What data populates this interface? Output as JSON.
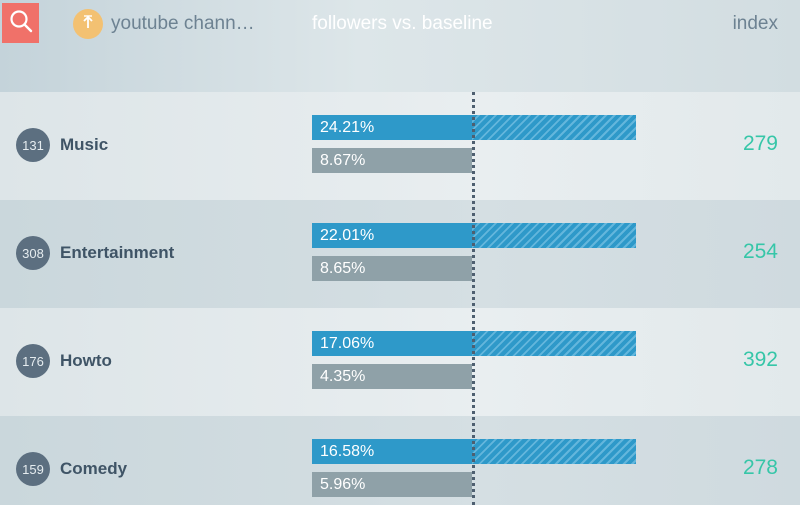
{
  "header": {
    "search_icon": "search-icon",
    "sort_icon": "sort-up-icon",
    "column_channel": "youtube chann…",
    "column_metric": "followers vs. baseline",
    "column_index": "index"
  },
  "colors": {
    "search_button": "#f07169",
    "sort_button": "#f3c172",
    "followers_bar": "#2e99c9",
    "baseline_bar": "#8fa1a8",
    "index_text": "#36c6a8",
    "rank_circle": "#5c6f80"
  },
  "rows": [
    {
      "rank": "131",
      "name": "Music",
      "followers": "24.21%",
      "baseline": "8.67%",
      "index": "279",
      "followers_value": 24.21,
      "baseline_value": 8.67
    },
    {
      "rank": "308",
      "name": "Entertainment",
      "followers": "22.01%",
      "baseline": "8.65%",
      "index": "254",
      "followers_value": 22.01,
      "baseline_value": 8.65
    },
    {
      "rank": "176",
      "name": "Howto",
      "followers": "17.06%",
      "baseline": "4.35%",
      "index": "392",
      "followers_value": 17.06,
      "baseline_value": 4.35
    },
    {
      "rank": "159",
      "name": "Comedy",
      "followers": "16.58%",
      "baseline": "5.96%",
      "index": "278",
      "followers_value": 16.58,
      "baseline_value": 5.96
    }
  ]
}
